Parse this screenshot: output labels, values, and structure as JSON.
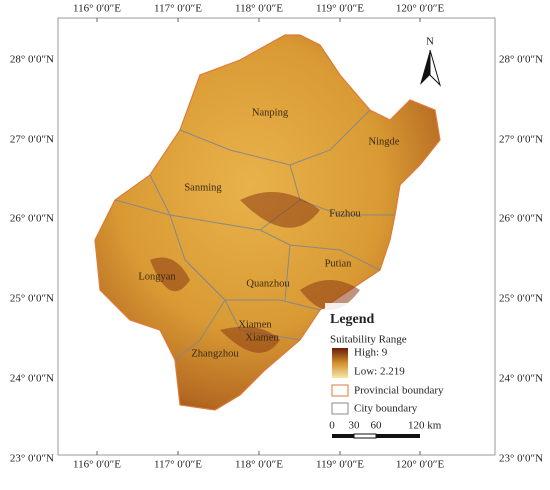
{
  "longitude_labels": [
    "116° 0′0″E",
    "117° 0′0″E",
    "118° 0′0″E",
    "119° 0′0″E",
    "120° 0′0″E"
  ],
  "latitude_labels": [
    "28° 0′0″N",
    "27° 0′0″N",
    "26° 0′0″N",
    "25° 0′0″N",
    "24° 0′0″N",
    "23° 0′0″N"
  ],
  "north_label": "N",
  "cities": [
    "Nanping",
    "Ningde",
    "Sanming",
    "Fuzhou",
    "Putian",
    "Longyan",
    "Quanzhou",
    "Xiamen",
    "Xiamen",
    "Zhangzhou"
  ],
  "legend": {
    "title": "Legend",
    "subtitle": "Suitability Range",
    "high": "High: 9",
    "low": "Low: 2.219",
    "provincial": "Provincial boundary",
    "city": "City boundary"
  },
  "scale": [
    "0",
    "30",
    "60",
    "120 km"
  ]
}
